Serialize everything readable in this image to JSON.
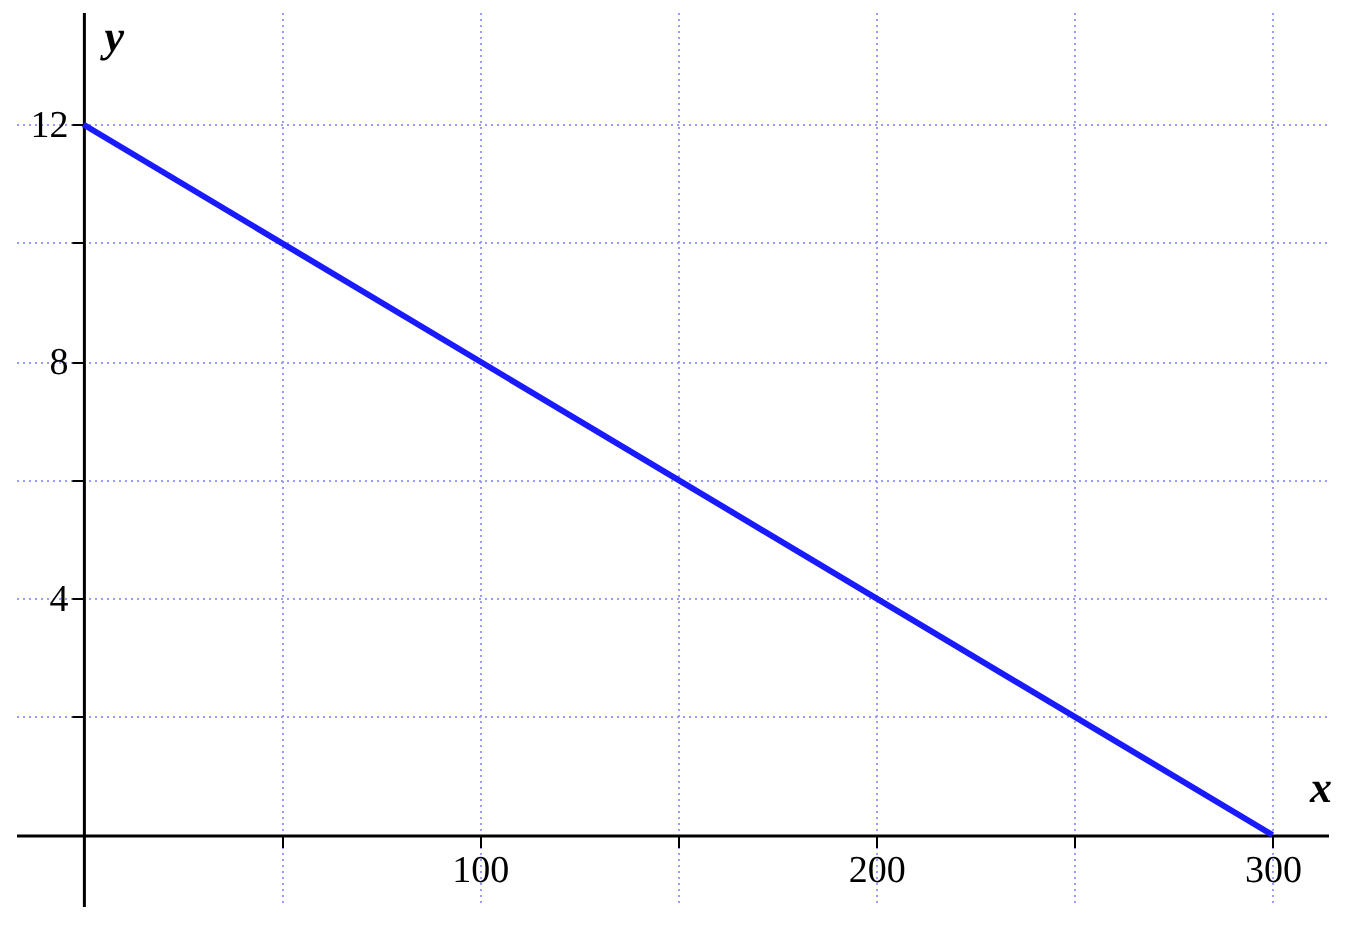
{
  "chart_data": {
    "type": "line",
    "xlabel": "x",
    "ylabel": "y",
    "x": [
      0,
      300
    ],
    "series": [
      {
        "color": "#1a1aff",
        "values": [
          12,
          0
        ]
      }
    ],
    "xlim": [
      -17,
      314
    ],
    "ylim": [
      -1.2,
      13.9
    ],
    "xticks": [
      {
        "value": 50,
        "label": null
      },
      100,
      {
        "value": 150,
        "label": null
      },
      200,
      {
        "value": 250,
        "label": null
      },
      300
    ],
    "yticks": [
      {
        "value": 2,
        "label": null
      },
      4,
      {
        "value": 6,
        "label": null
      },
      8,
      {
        "value": 10,
        "label": null
      },
      12
    ],
    "grid": true,
    "marker": "none",
    "line_style": "solid"
  }
}
